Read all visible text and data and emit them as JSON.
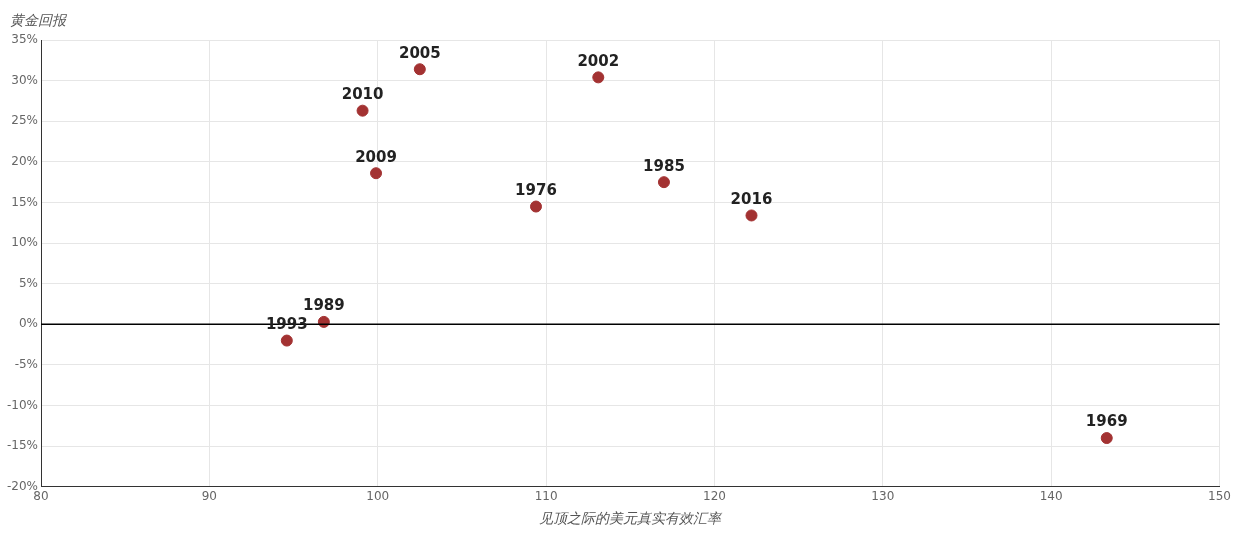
{
  "chart_data": {
    "type": "scatter",
    "xlabel": "见顶之际的美元真实有效汇率",
    "ylabel": "黄金回报",
    "x": [
      94.6,
      96.8,
      99.1,
      99.9,
      102.5,
      109.4,
      113.1,
      117.0,
      122.2,
      143.3
    ],
    "series": [
      {
        "color": "#a33232",
        "values": [
          -2.0,
          0.3,
          26.3,
          18.6,
          31.4,
          14.5,
          30.4,
          17.5,
          13.4,
          -14.0
        ]
      }
    ],
    "xlim": [
      80,
      150
    ],
    "xticks": [
      80,
      90,
      100,
      110,
      120,
      130,
      140,
      150
    ],
    "ylim": [
      -20,
      35
    ],
    "yticks": [
      {
        "value": -20,
        "label": "-20%"
      },
      {
        "value": -15,
        "label": "-15%"
      },
      {
        "value": -10,
        "label": "-10%"
      },
      {
        "value": -5,
        "label": "-5%"
      },
      {
        "value": 0,
        "label": "0%"
      },
      {
        "value": 5,
        "label": "5%"
      },
      {
        "value": 10,
        "label": "10%"
      },
      {
        "value": 15,
        "label": "15%"
      },
      {
        "value": 20,
        "label": "20%"
      },
      {
        "value": 25,
        "label": "25%"
      },
      {
        "value": 30,
        "label": "30%"
      },
      {
        "value": 35,
        "label": "35%"
      }
    ],
    "annotations": [
      {
        "text": "1993",
        "x": 94.6,
        "y": -2.0
      },
      {
        "text": "1989",
        "x": 96.8,
        "y": 0.3
      },
      {
        "text": "2010",
        "x": 99.1,
        "y": 26.3
      },
      {
        "text": "2009",
        "x": 99.9,
        "y": 18.6
      },
      {
        "text": "2005",
        "x": 102.5,
        "y": 31.4
      },
      {
        "text": "1976",
        "x": 109.4,
        "y": 14.5
      },
      {
        "text": "2002",
        "x": 113.1,
        "y": 30.4
      },
      {
        "text": "1985",
        "x": 117.0,
        "y": 17.5
      },
      {
        "text": "2016",
        "x": 122.2,
        "y": 13.4
      },
      {
        "text": "1969",
        "x": 143.3,
        "y": -14.0
      }
    ],
    "ref_lines": [
      {
        "axis": "y",
        "value": 0,
        "color": "#000000"
      }
    ],
    "grid": true,
    "legend": false,
    "marker": "circle"
  }
}
